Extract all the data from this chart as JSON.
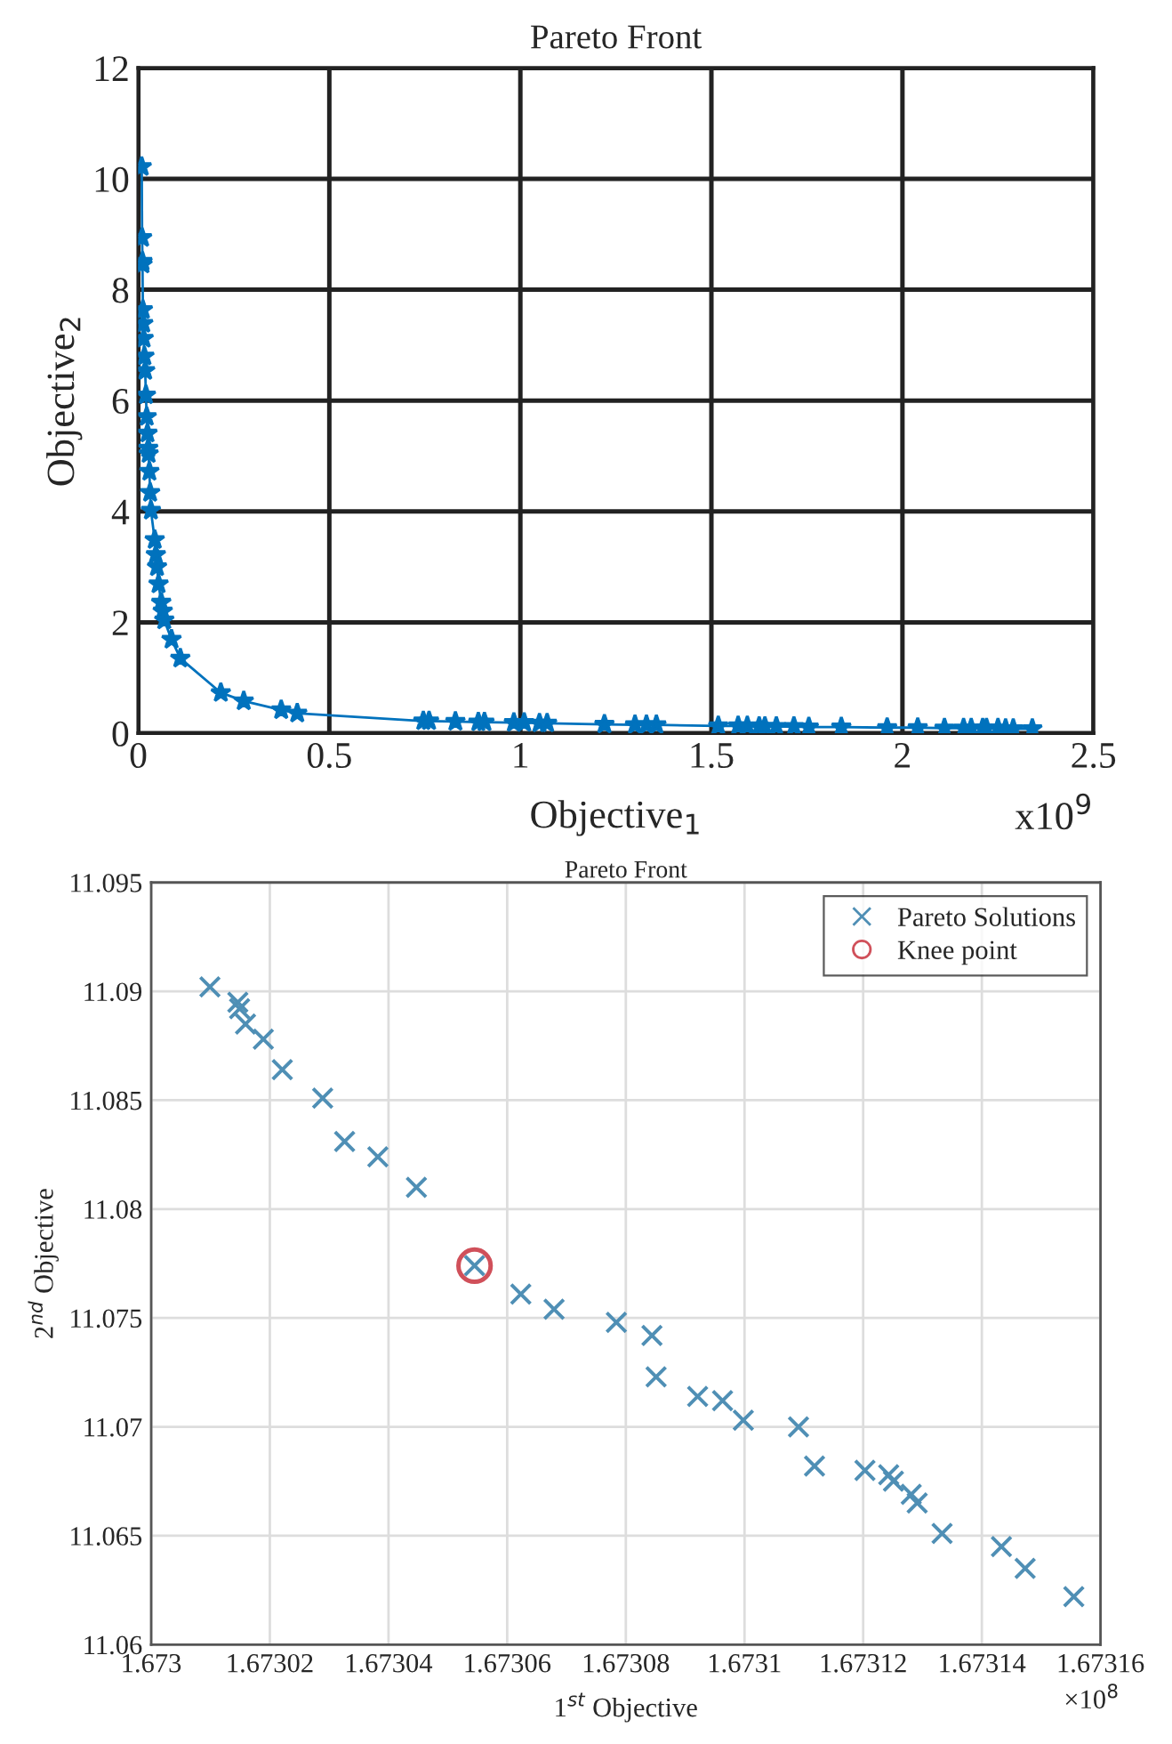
{
  "chart_data": [
    {
      "type": "line",
      "title": "Pareto Front",
      "xlabel": "Objective$_{1}$",
      "ylabel": "Objective$_{2}$",
      "annotations": [
        "x10$^{9}$"
      ],
      "xlim": [
        0,
        2.5
      ],
      "xticks": [
        0,
        0.5,
        1,
        1.5,
        2,
        2.5
      ],
      "ylim": [
        0,
        12
      ],
      "yticks": [
        0,
        2,
        4,
        6,
        8,
        10,
        12
      ],
      "grid": true,
      "marker": "star",
      "line_style": "solid",
      "series": [
        {
          "color": "#0072bd",
          "x": [
            0.009,
            0.01,
            0.011,
            0.011,
            0.012,
            0.013,
            0.014,
            0.016,
            0.018,
            0.02,
            0.022,
            0.024,
            0.026,
            0.027,
            0.029,
            0.031,
            0.033,
            0.043,
            0.046,
            0.049,
            0.053,
            0.06,
            0.064,
            0.068,
            0.087,
            0.11,
            0.216,
            0.276,
            0.374,
            0.416,
            0.746,
            0.761,
            0.83,
            0.89,
            0.906,
            0.983,
            1.01,
            1.05,
            1.07,
            1.22,
            1.3,
            1.33,
            1.356,
            1.518,
            1.57,
            1.594,
            1.625,
            1.64,
            1.67,
            1.716,
            1.755,
            1.84,
            1.96,
            2.04,
            2.11,
            2.16,
            2.18,
            2.21,
            2.22,
            2.25,
            2.27,
            2.29,
            2.34
          ],
          "values": [
            10.22,
            8.94,
            8.51,
            8.46,
            7.64,
            7.39,
            7.12,
            6.8,
            6.54,
            6.1,
            5.71,
            5.41,
            5.14,
            5.04,
            4.72,
            4.34,
            4.02,
            3.49,
            3.22,
            3.0,
            2.69,
            2.36,
            2.2,
            2.04,
            1.69,
            1.35,
            0.73,
            0.58,
            0.42,
            0.36,
            0.22,
            0.22,
            0.21,
            0.2,
            0.2,
            0.19,
            0.19,
            0.18,
            0.18,
            0.16,
            0.15,
            0.15,
            0.15,
            0.13,
            0.13,
            0.13,
            0.12,
            0.12,
            0.12,
            0.12,
            0.11,
            0.11,
            0.1,
            0.1,
            0.09,
            0.09,
            0.09,
            0.09,
            0.09,
            0.09,
            0.08,
            0.08,
            0.08
          ]
        }
      ]
    },
    {
      "type": "scatter",
      "title": "Pareto Front",
      "xlabel": "1$^{st}$ Objective",
      "ylabel": "2$^{nd}$ Objective",
      "annotations": [
        "×10$^{8}$"
      ],
      "xlim": [
        1.673,
        1.67316
      ],
      "xticks": [
        1.673,
        1.67302,
        1.67304,
        1.67306,
        1.67308,
        1.6731,
        1.67312,
        1.67314,
        1.67316
      ],
      "ylim": [
        11.06,
        11.095
      ],
      "yticks": [
        11.06,
        11.065,
        11.07,
        11.075,
        11.08,
        11.085,
        11.09,
        11.095
      ],
      "grid": true,
      "legend": "top right",
      "series": [
        {
          "name": "Pareto Solutions",
          "color": "#4f8fb5",
          "marker": "cross",
          "x": [
            1.6730099,
            1.6730146,
            1.6730149,
            1.6730159,
            1.6730189,
            1.6730221,
            1.6730289,
            1.6730326,
            1.6730382,
            1.6730447,
            1.6730545,
            1.6730623,
            1.6730679,
            1.6730784,
            1.6730844,
            1.6730851,
            1.6730921,
            1.6730963,
            1.6730998,
            1.6731091,
            1.6731118,
            1.6731203,
            1.6731243,
            1.6731251,
            1.6731281,
            1.6731291,
            1.6731333,
            1.6731433,
            1.6731473,
            1.6731555
          ],
          "values": [
            11.0902,
            11.0895,
            11.0892,
            11.0885,
            11.0878,
            11.0864,
            11.0851,
            11.0831,
            11.0824,
            11.081,
            11.0774,
            11.0761,
            11.0754,
            11.0748,
            11.0742,
            11.0723,
            11.0714,
            11.0712,
            11.0703,
            11.07,
            11.0682,
            11.068,
            11.0678,
            11.0675,
            11.0669,
            11.0665,
            11.0651,
            11.0645,
            11.0635,
            11.0622
          ]
        },
        {
          "name": "Knee point",
          "color": "#d0505a",
          "marker": "circle",
          "x": [
            1.6730545
          ],
          "values": [
            11.0774
          ]
        }
      ]
    }
  ]
}
